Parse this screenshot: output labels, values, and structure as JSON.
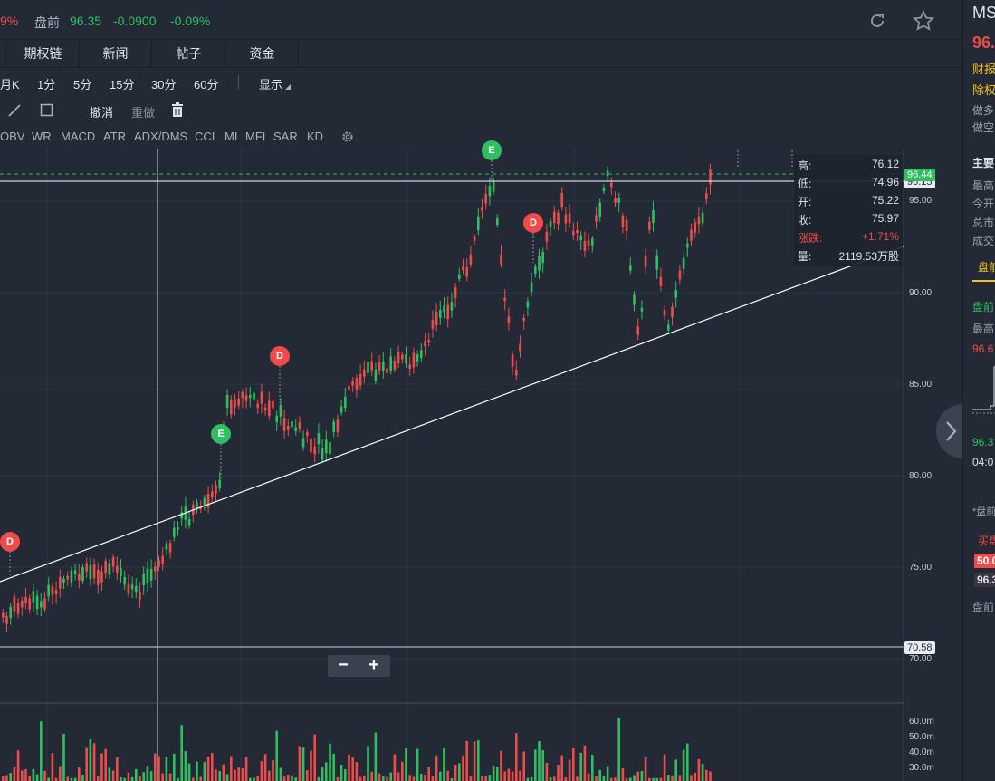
{
  "header": {
    "change_pct_left": "9%",
    "premarket_label": "盘前",
    "premarket_price": "96.35",
    "premarket_change": "-0.0900",
    "premarket_change_pct": "-0.09%"
  },
  "tabs": [
    "期权链",
    "新闻",
    "帖子",
    "资金"
  ],
  "periods": [
    "月K",
    "1分",
    "5分",
    "15分",
    "30分",
    "60分"
  ],
  "display_label": "显示",
  "toolbar": {
    "undo": "撤消",
    "redo": "重做"
  },
  "indicators": [
    "OBV",
    "WR",
    "MACD",
    "ATR",
    "ADX/DMS",
    "CCI",
    "MI",
    "MFI",
    "SAR",
    "KD"
  ],
  "price_axis": [
    "95.00",
    "90.00",
    "85.00",
    "80.00",
    "75.00",
    "70.00"
  ],
  "volume_axis": [
    "60.0m",
    "50.0m",
    "40.0m",
    "30.0m"
  ],
  "tags": {
    "current_price": "96.44",
    "covered_price": "96.15",
    "low_price": "70.58"
  },
  "ohlc": {
    "high_label": "高:",
    "high": "76.12",
    "low_label": "低:",
    "low": "74.96",
    "open_label": "开:",
    "open": "75.22",
    "close_label": "收:",
    "close": "75.97",
    "change_label": "涨跌:",
    "change": "+1.71%",
    "volume_label": "量:",
    "volume": "2119.53万股"
  },
  "markers": {
    "d": "D",
    "e": "E"
  },
  "zoom": {
    "minus": "−",
    "plus": "+"
  },
  "sidebar": {
    "ticker": "MS",
    "price": "96.",
    "earnings": "财报",
    "exright": "除权",
    "long": "做多",
    "short": "做空",
    "main": "主要",
    "high": "最高",
    "open": "今开",
    "mktcap": "总市",
    "turnover": "成交",
    "tab_premarket": "盘前",
    "pre_label": "盘前",
    "pre_high": "最高",
    "pre_value": "96.6",
    "pre_price": "96.3",
    "pre_time": "04:0",
    "pre_note": "*盘前",
    "buy": "买盘",
    "bid1": "50.0",
    "bid2": "96.3",
    "foot": "盘前"
  },
  "colors": {
    "up": "#f04b4b",
    "down": "#2fbf60",
    "bg": "#232a36",
    "accent": "#f0c419"
  }
}
